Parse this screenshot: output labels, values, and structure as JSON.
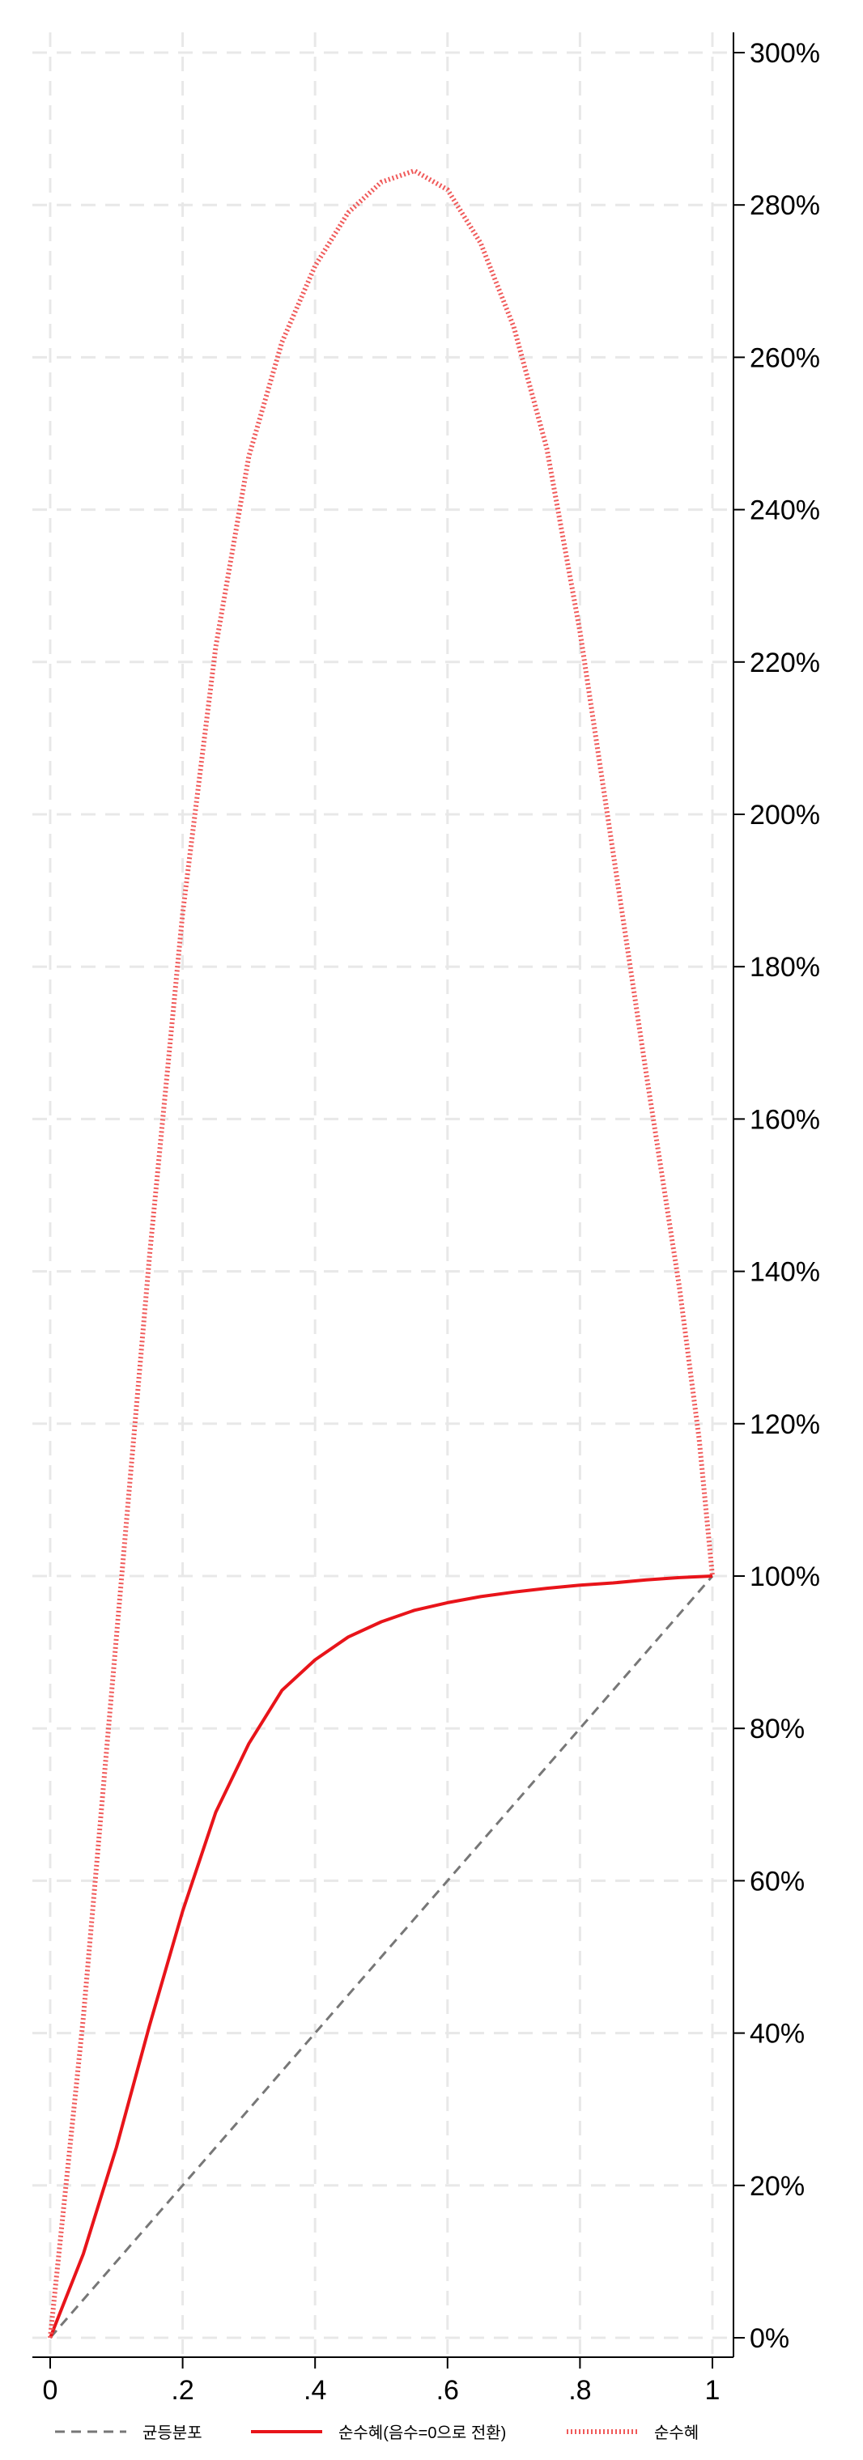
{
  "chart_data": {
    "type": "line",
    "title": "",
    "xlabel": "",
    "ylabel": "",
    "xlim": [
      0,
      1
    ],
    "ylim": [
      0,
      3
    ],
    "y_axis_side": "right",
    "x_ticks": [
      {
        "value": 0,
        "label": "0"
      },
      {
        "value": 0.2,
        "label": ".2"
      },
      {
        "value": 0.4,
        "label": ".4"
      },
      {
        "value": 0.6,
        "label": ".6"
      },
      {
        "value": 0.8,
        "label": ".8"
      },
      {
        "value": 1,
        "label": "1"
      }
    ],
    "y_ticks": [
      {
        "value": 0,
        "label": "0%"
      },
      {
        "value": 0.2,
        "label": "20%"
      },
      {
        "value": 0.4,
        "label": "40%"
      },
      {
        "value": 0.6,
        "label": "60%"
      },
      {
        "value": 0.8,
        "label": "80%"
      },
      {
        "value": 1.0,
        "label": "100%"
      },
      {
        "value": 1.2,
        "label": "120%"
      },
      {
        "value": 1.4,
        "label": "140%"
      },
      {
        "value": 1.6,
        "label": "160%"
      },
      {
        "value": 1.8,
        "label": "180%"
      },
      {
        "value": 2.0,
        "label": "200%"
      },
      {
        "value": 2.2,
        "label": "220%"
      },
      {
        "value": 2.4,
        "label": "240%"
      },
      {
        "value": 2.6,
        "label": "260%"
      },
      {
        "value": 2.8,
        "label": "280%"
      },
      {
        "value": 3.0,
        "label": "300%"
      }
    ],
    "grid": true,
    "legend_position": "bottom",
    "series": [
      {
        "name": "균등분포",
        "color": "#777777",
        "style": "dashed",
        "points": [
          [
            0,
            0
          ],
          [
            1,
            1
          ]
        ]
      },
      {
        "name": "순수혜(음수=0으로 전환)",
        "color": "#e8141a",
        "style": "solid",
        "points": [
          [
            0,
            0
          ],
          [
            0.05,
            0.11
          ],
          [
            0.1,
            0.25
          ],
          [
            0.15,
            0.41
          ],
          [
            0.2,
            0.56
          ],
          [
            0.25,
            0.69
          ],
          [
            0.3,
            0.78
          ],
          [
            0.35,
            0.85
          ],
          [
            0.4,
            0.89
          ],
          [
            0.45,
            0.92
          ],
          [
            0.5,
            0.94
          ],
          [
            0.55,
            0.955
          ],
          [
            0.6,
            0.965
          ],
          [
            0.65,
            0.973
          ],
          [
            0.7,
            0.979
          ],
          [
            0.75,
            0.984
          ],
          [
            0.8,
            0.988
          ],
          [
            0.85,
            0.991
          ],
          [
            0.9,
            0.995
          ],
          [
            0.95,
            0.998
          ],
          [
            1,
            1.0
          ]
        ]
      },
      {
        "name": "순수혜",
        "color": "#f05a5a",
        "style": "dotted",
        "points": [
          [
            0,
            0
          ],
          [
            0.05,
            0.42
          ],
          [
            0.1,
            0.92
          ],
          [
            0.15,
            1.42
          ],
          [
            0.2,
            1.87
          ],
          [
            0.25,
            2.22
          ],
          [
            0.3,
            2.47
          ],
          [
            0.35,
            2.62
          ],
          [
            0.4,
            2.72
          ],
          [
            0.45,
            2.79
          ],
          [
            0.5,
            2.83
          ],
          [
            0.55,
            2.845
          ],
          [
            0.6,
            2.82
          ],
          [
            0.65,
            2.75
          ],
          [
            0.7,
            2.64
          ],
          [
            0.75,
            2.48
          ],
          [
            0.8,
            2.24
          ],
          [
            0.85,
            1.95
          ],
          [
            0.9,
            1.66
          ],
          [
            0.95,
            1.38
          ],
          [
            0.98,
            1.18
          ],
          [
            1,
            1.0
          ]
        ]
      }
    ]
  }
}
